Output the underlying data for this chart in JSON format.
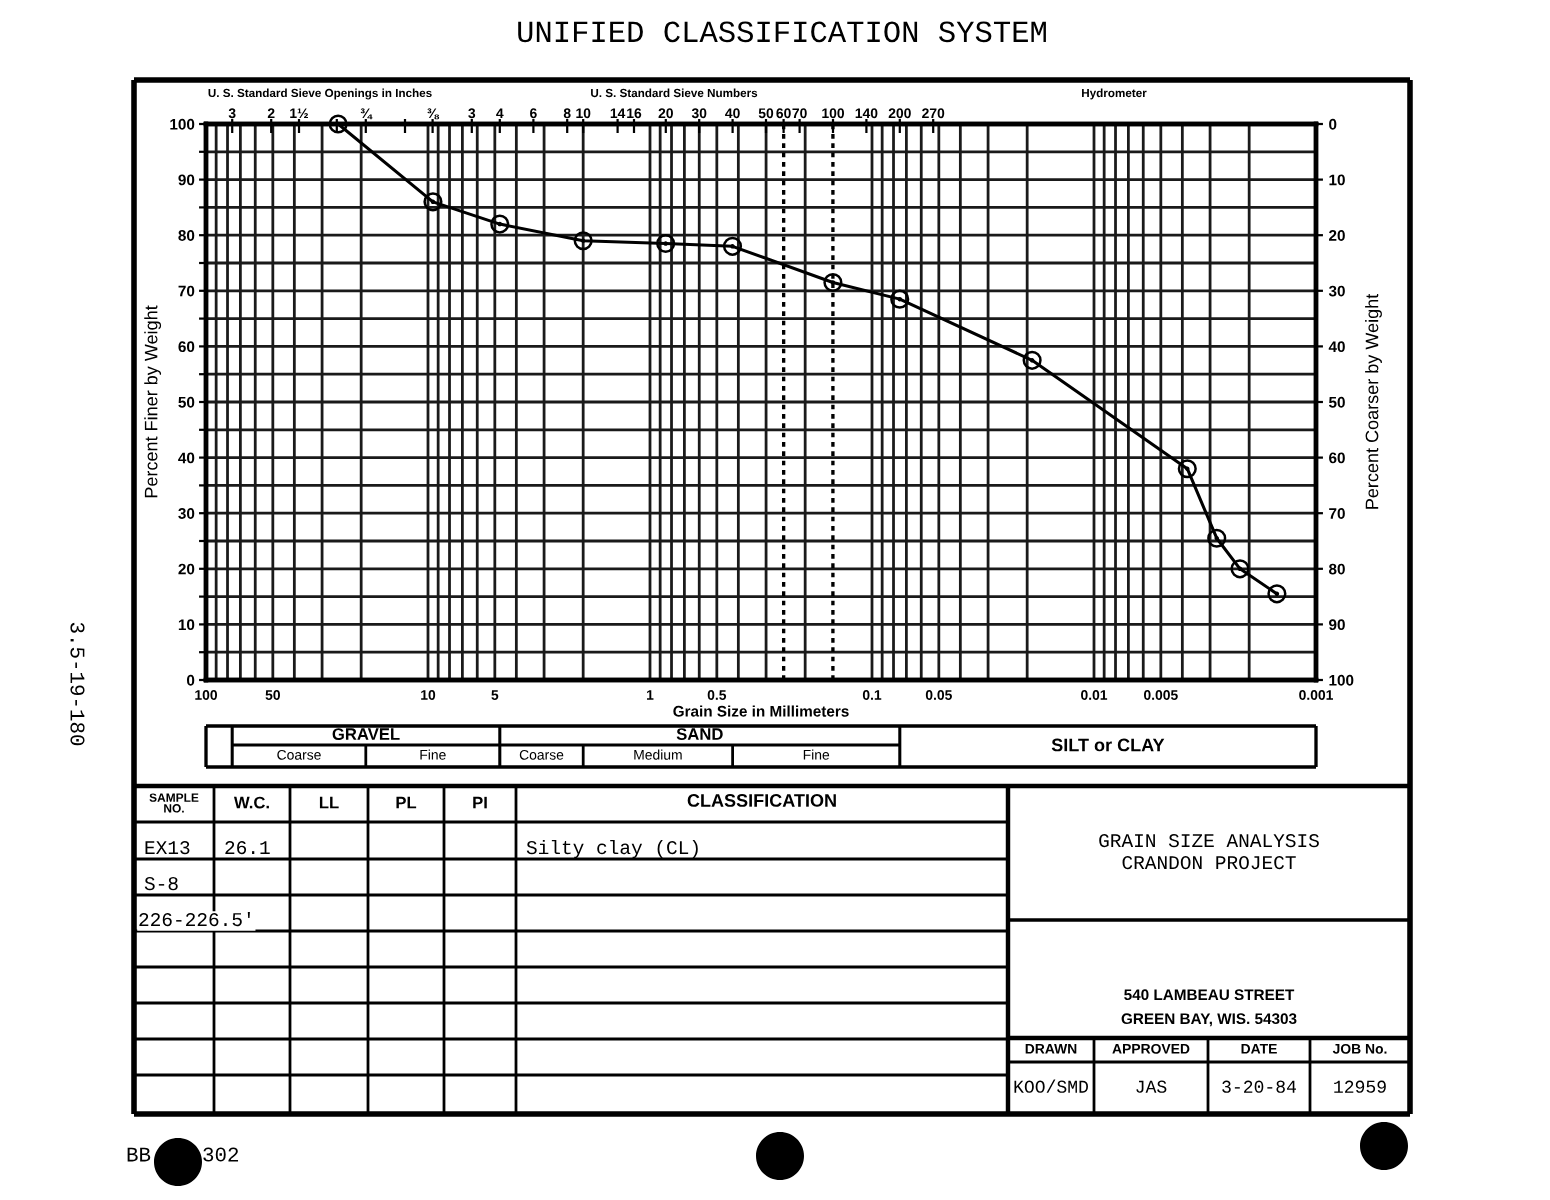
{
  "chart_data": {
    "type": "line",
    "title": "UNIFIED CLASSIFICATION SYSTEM",
    "xlabel": "Grain Size in Millimeters",
    "ylabel": "Percent Finer by Weight",
    "y2label": "Percent Coarser by Weight",
    "x": [
      25.4,
      9.5,
      4.75,
      2.0,
      0.85,
      0.425,
      0.15,
      0.075,
      0.019,
      0.0038,
      0.0028,
      0.0022,
      0.0015
    ],
    "series": [
      {
        "color": "#000000",
        "values": [
          100,
          86,
          82,
          79,
          78.5,
          78,
          71.5,
          68.5,
          57.5,
          38,
          25.5,
          20,
          15.5
        ]
      }
    ],
    "log": "x",
    "xlim": [
      100,
      0.001
    ],
    "xticks": [
      100,
      {
        "value": 90,
        "label": null
      },
      {
        "value": 80,
        "label": null
      },
      {
        "value": 70,
        "label": null
      },
      {
        "value": 60,
        "label": null
      },
      50,
      {
        "value": 40,
        "label": null
      },
      {
        "value": 30,
        "label": null
      },
      {
        "value": 20,
        "label": null
      },
      10,
      {
        "value": 9,
        "label": null
      },
      {
        "value": 8,
        "label": null
      },
      {
        "value": 7,
        "label": null
      },
      {
        "value": 6,
        "label": null
      },
      5,
      {
        "value": 4,
        "label": null
      },
      {
        "value": 3,
        "label": null
      },
      {
        "value": 2,
        "label": null
      },
      1,
      {
        "value": 0.9,
        "label": null
      },
      {
        "value": 0.8,
        "label": null
      },
      {
        "value": 0.7,
        "label": null
      },
      {
        "value": 0.6,
        "label": null
      },
      0.5,
      {
        "value": 0.4,
        "label": null
      },
      {
        "value": 0.3,
        "label": null
      },
      {
        "value": 0.2,
        "label": null
      },
      0.1,
      {
        "value": 0.09,
        "label": null
      },
      {
        "value": 0.08,
        "label": null
      },
      {
        "value": 0.07,
        "label": null
      },
      {
        "value": 0.06,
        "label": null
      },
      0.05,
      {
        "value": 0.04,
        "label": null
      },
      {
        "value": 0.03,
        "label": null
      },
      {
        "value": 0.02,
        "label": null
      },
      0.01,
      {
        "value": 0.009,
        "label": null
      },
      {
        "value": 0.008,
        "label": null
      },
      {
        "value": 0.007,
        "label": null
      },
      {
        "value": 0.006,
        "label": null
      },
      0.005,
      {
        "value": 0.004,
        "label": null
      },
      {
        "value": 0.003,
        "label": null
      },
      {
        "value": 0.002,
        "label": null
      },
      0.001
    ],
    "ylim": [
      0,
      100
    ],
    "yticks": [
      0,
      {
        "value": 5,
        "label": null
      },
      10,
      {
        "value": 15,
        "label": null
      },
      20,
      {
        "value": 25,
        "label": null
      },
      30,
      {
        "value": 35,
        "label": null
      },
      40,
      {
        "value": 45,
        "label": null
      },
      50,
      {
        "value": 55,
        "label": null
      },
      60,
      {
        "value": 65,
        "label": null
      },
      70,
      {
        "value": 75,
        "label": null
      },
      80,
      {
        "value": 85,
        "label": null
      },
      90,
      {
        "value": 95,
        "label": null
      },
      100
    ],
    "y2lim": [
      100,
      0
    ],
    "y2ticks": [
      0,
      10,
      20,
      30,
      40,
      50,
      60,
      70,
      80,
      90,
      100
    ],
    "grid": true,
    "marker": "circle",
    "line_style": "solid",
    "ref_lines": [
      {
        "axis": "x",
        "value": 0.25,
        "line_style": "dotted"
      },
      {
        "axis": "x",
        "value": 0.15,
        "line_style": "dotted"
      }
    ],
    "annotations": [
      "U. S. Standard Sieve Openings in Inches",
      "U. S. Standard Sieve Numbers",
      "Hydrometer",
      "3",
      "2",
      "1½",
      "¾",
      "⅜",
      "3",
      "4",
      "6",
      "8",
      "10",
      "14",
      "16",
      "20",
      "30",
      "40",
      "50",
      "60",
      "70",
      "100",
      "140",
      "200",
      "270",
      "GRAVEL",
      "Coarse",
      "Fine",
      "SAND",
      "Coarse",
      "Medium",
      "Fine",
      "SILT or CLAY",
      "SAMPLE\nNO.",
      "W.C.",
      "LL",
      "PL",
      "PI",
      "CLASSIFICATION",
      "EX13",
      "26.1",
      "Silty clay (CL)",
      "S-8",
      "226-226.5'",
      "GRAIN SIZE ANALYSIS",
      "CRANDON PROJECT",
      "540 LAMBEAU STREET",
      "GREEN BAY, WIS. 54303",
      "DRAWN",
      "APPROVED",
      "DATE",
      "JOB No.",
      "KOO/SMD",
      "JAS",
      "3-20-84",
      "12959",
      "3.5-19-180",
      "BB",
      "302"
    ]
  }
}
